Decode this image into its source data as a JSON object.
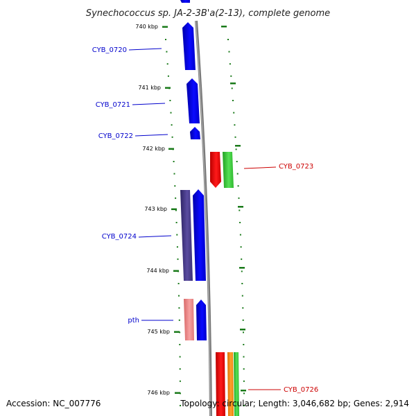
{
  "title": "Synechococcus sp. JA-2-3B'a(2-13), complete genome",
  "footer": {
    "accession": "Accession: NC_007776",
    "info": "Topology: circular; Length: 3,046,682 bp; Genes: 2,914"
  },
  "ruler": [
    "740 kbp",
    "741 kbp",
    "742 kbp",
    "743 kbp",
    "744 kbp",
    "745 kbp",
    "746 kbp"
  ],
  "labels": [
    {
      "text": "CYB_0720",
      "color": "#0000cc"
    },
    {
      "text": "CYB_0721",
      "color": "#0000cc"
    },
    {
      "text": "CYB_0722",
      "color": "#0000cc"
    },
    {
      "text": "CYB_0723",
      "color": "#cc0000"
    },
    {
      "text": "CYB_0724",
      "color": "#0000cc"
    },
    {
      "text": "pth",
      "color": "#0000cc"
    },
    {
      "text": "CYB_0726",
      "color": "#cc0000"
    }
  ],
  "colors": {
    "blue": "#0000ee",
    "purple": "#4a3d8c",
    "pink": "#ee8888",
    "red": "#ee0000",
    "green": "#33cc33",
    "orange": "#ff8800",
    "backbone": "#888888",
    "ticks": "#1a7a1a"
  }
}
